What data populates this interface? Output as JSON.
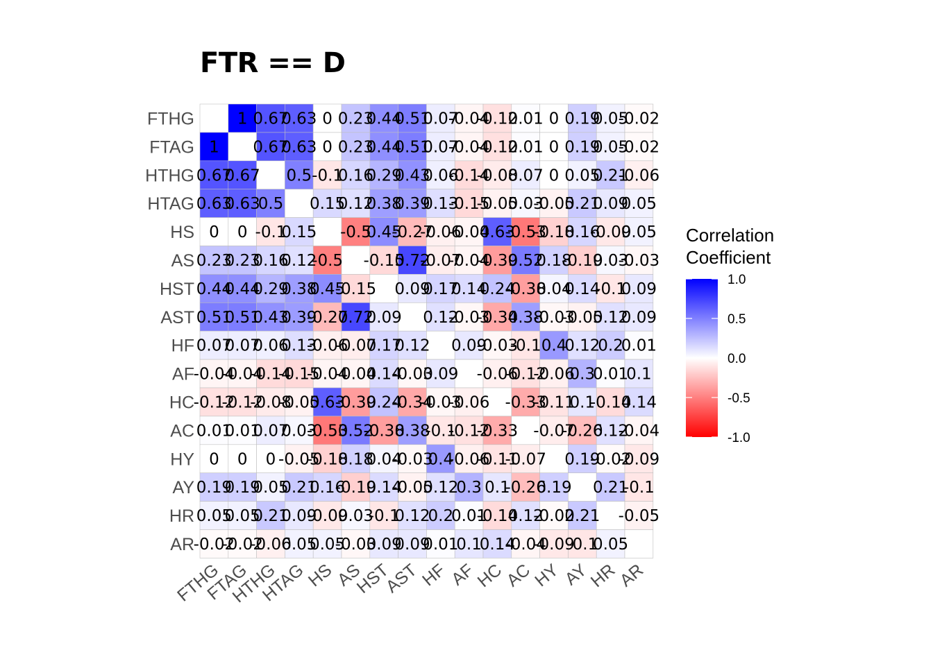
{
  "chart_data": {
    "type": "heatmap",
    "title": "FTR == D",
    "variables": [
      "FTHG",
      "FTAG",
      "HTHG",
      "HTAG",
      "HS",
      "AS",
      "HST",
      "AST",
      "HF",
      "AF",
      "HC",
      "AC",
      "HY",
      "AY",
      "HR",
      "AR"
    ],
    "matrix": [
      [
        null,
        1,
        0.67,
        0.63,
        0,
        0.23,
        0.44,
        0.51,
        0.07,
        -0.04,
        -0.12,
        0.01,
        0,
        0.19,
        0.05,
        -0.02
      ],
      [
        1,
        null,
        0.67,
        0.63,
        0,
        0.23,
        0.44,
        0.51,
        0.07,
        -0.04,
        -0.12,
        0.01,
        0,
        0.19,
        0.05,
        -0.02
      ],
      [
        0.67,
        0.67,
        null,
        0.5,
        -0.1,
        0.16,
        0.29,
        0.43,
        0.06,
        -0.14,
        -0.08,
        0.07,
        0,
        0.05,
        0.21,
        -0.06
      ],
      [
        0.63,
        0.63,
        0.5,
        null,
        0.15,
        0.12,
        0.38,
        0.39,
        0.13,
        -0.15,
        -0.05,
        0.03,
        -0.05,
        0.21,
        0.09,
        0.05
      ],
      [
        0,
        0,
        -0.1,
        0.15,
        null,
        -0.5,
        0.45,
        -0.27,
        -0.06,
        -0.04,
        0.63,
        -0.53,
        -0.18,
        0.16,
        -0.09,
        0.05
      ],
      [
        0.23,
        0.23,
        0.16,
        0.12,
        -0.5,
        null,
        -0.15,
        0.72,
        -0.07,
        -0.04,
        -0.39,
        0.52,
        0.18,
        -0.19,
        0.03,
        -0.03
      ],
      [
        0.44,
        0.44,
        0.29,
        0.38,
        0.45,
        -0.15,
        null,
        0.09,
        0.17,
        0.14,
        0.24,
        -0.38,
        0.04,
        0.14,
        -0.1,
        0.09
      ],
      [
        0.51,
        0.51,
        0.43,
        0.39,
        -0.27,
        0.72,
        0.09,
        null,
        0.12,
        -0.03,
        -0.34,
        0.38,
        -0.03,
        -0.05,
        0.12,
        0.09
      ],
      [
        0.07,
        0.07,
        0.06,
        0.13,
        -0.06,
        -0.07,
        0.17,
        0.12,
        null,
        0.09,
        -0.03,
        -0.1,
        0.4,
        0.12,
        0.2,
        0.01
      ],
      [
        -0.04,
        -0.04,
        -0.14,
        -0.15,
        -0.04,
        -0.04,
        0.14,
        -0.03,
        0.09,
        null,
        -0.06,
        -0.12,
        -0.06,
        0.3,
        0.01,
        0.1
      ],
      [
        -0.12,
        -0.12,
        -0.08,
        -0.05,
        0.63,
        -0.39,
        0.24,
        -0.34,
        -0.03,
        -0.06,
        null,
        -0.33,
        -0.11,
        0.1,
        -0.14,
        0.14
      ],
      [
        0.01,
        0.01,
        0.07,
        0.03,
        -0.53,
        0.52,
        -0.38,
        0.38,
        -0.1,
        -0.12,
        -0.33,
        null,
        -0.07,
        -0.26,
        0.12,
        -0.04
      ],
      [
        0,
        0,
        0,
        -0.05,
        -0.18,
        0.18,
        0.04,
        -0.03,
        0.4,
        -0.06,
        -0.11,
        -0.07,
        null,
        0.19,
        -0.02,
        -0.09
      ],
      [
        0.19,
        0.19,
        0.05,
        0.21,
        0.16,
        -0.19,
        0.14,
        -0.05,
        0.12,
        0.3,
        0.1,
        -0.26,
        0.19,
        null,
        0.21,
        -0.1
      ],
      [
        0.05,
        0.05,
        0.21,
        0.09,
        -0.09,
        0.03,
        -0.1,
        0.12,
        0.2,
        0.01,
        -0.14,
        0.12,
        -0.02,
        0.21,
        null,
        -0.05
      ],
      [
        -0.02,
        -0.02,
        -0.06,
        0.05,
        0.05,
        -0.03,
        0.09,
        0.09,
        0.01,
        0.1,
        0.14,
        -0.04,
        -0.09,
        -0.1,
        0.05,
        null
      ]
    ],
    "legend": {
      "title_lines": [
        "Correlation",
        "Coefficient"
      ],
      "ticks": [
        "1.0",
        "0.5",
        "0.0",
        "-0.5",
        "-1.0"
      ],
      "tick_values": [
        1,
        0.5,
        0,
        -0.5,
        -1
      ],
      "range": [
        -1,
        1
      ],
      "position": "right"
    },
    "colors": {
      "high": "#0000ff",
      "mid": "#ffffff",
      "low": "#ff0000",
      "grid": "#bfbfbf"
    }
  }
}
